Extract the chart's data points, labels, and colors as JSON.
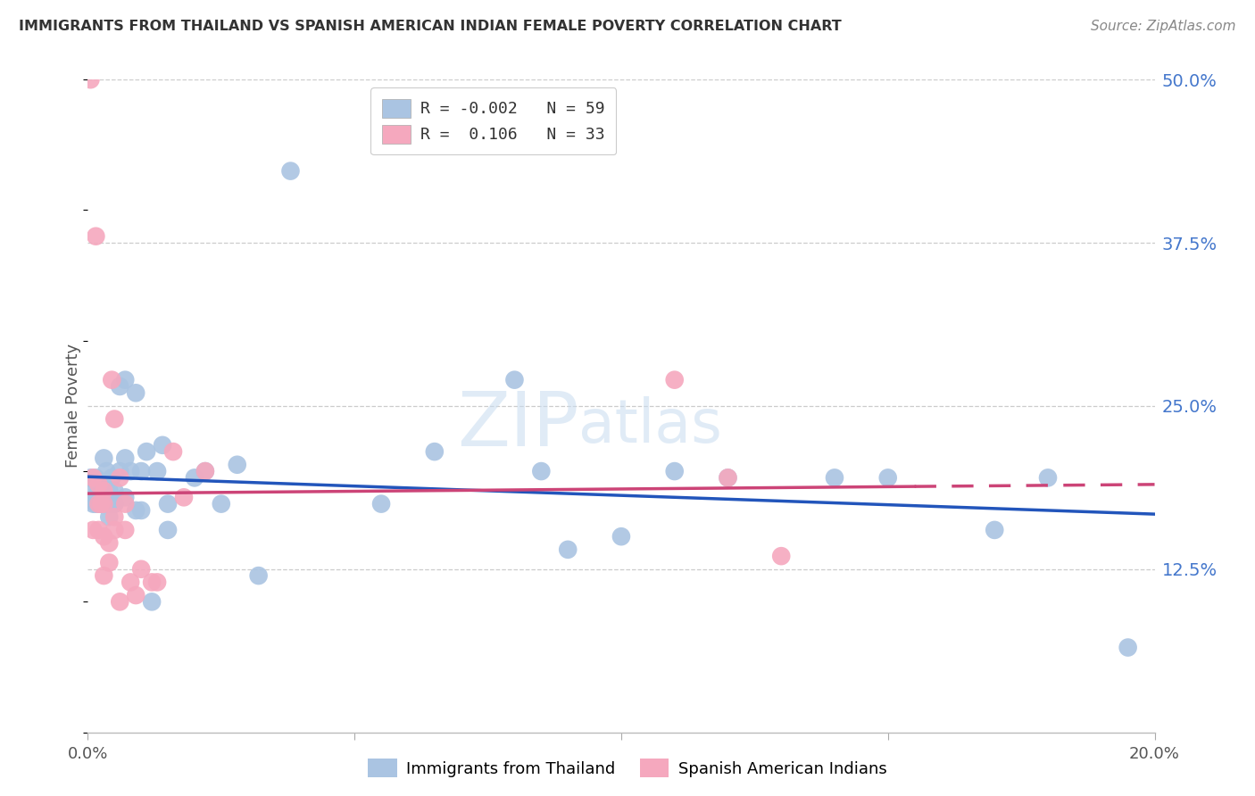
{
  "title": "IMMIGRANTS FROM THAILAND VS SPANISH AMERICAN INDIAN FEMALE POVERTY CORRELATION CHART",
  "source": "Source: ZipAtlas.com",
  "ylabel": "Female Poverty",
  "legend_label1": "Immigrants from Thailand",
  "legend_label2": "Spanish American Indians",
  "blue_scatter_color": "#aac4e2",
  "pink_scatter_color": "#f5a8be",
  "blue_line_color": "#2255bb",
  "pink_line_color": "#cc4477",
  "watermark": "ZIPatlas",
  "blue_R": -0.002,
  "blue_N": 59,
  "pink_R": 0.106,
  "pink_N": 33,
  "x_min": 0.0,
  "x_max": 0.2,
  "y_min": 0.0,
  "y_max": 0.5,
  "y_ticks_right": [
    0.125,
    0.25,
    0.375,
    0.5
  ],
  "y_tick_labels_right": [
    "12.5%",
    "25.0%",
    "37.5%",
    "50.0%"
  ],
  "blue_x": [
    0.0005,
    0.001,
    0.001,
    0.0015,
    0.0015,
    0.002,
    0.002,
    0.002,
    0.002,
    0.0025,
    0.0025,
    0.003,
    0.003,
    0.003,
    0.003,
    0.0035,
    0.0035,
    0.004,
    0.004,
    0.004,
    0.0045,
    0.005,
    0.005,
    0.005,
    0.006,
    0.006,
    0.007,
    0.007,
    0.007,
    0.008,
    0.009,
    0.009,
    0.01,
    0.01,
    0.011,
    0.012,
    0.013,
    0.014,
    0.015,
    0.015,
    0.02,
    0.022,
    0.025,
    0.028,
    0.032,
    0.038,
    0.055,
    0.065,
    0.08,
    0.085,
    0.09,
    0.1,
    0.11,
    0.12,
    0.14,
    0.15,
    0.17,
    0.18,
    0.195
  ],
  "blue_y": [
    0.195,
    0.175,
    0.185,
    0.195,
    0.175,
    0.185,
    0.19,
    0.175,
    0.185,
    0.185,
    0.175,
    0.19,
    0.185,
    0.21,
    0.175,
    0.175,
    0.2,
    0.165,
    0.175,
    0.185,
    0.195,
    0.175,
    0.185,
    0.175,
    0.265,
    0.2,
    0.18,
    0.21,
    0.27,
    0.2,
    0.17,
    0.26,
    0.2,
    0.17,
    0.215,
    0.1,
    0.2,
    0.22,
    0.175,
    0.155,
    0.195,
    0.2,
    0.175,
    0.205,
    0.12,
    0.43,
    0.175,
    0.215,
    0.27,
    0.2,
    0.14,
    0.15,
    0.2,
    0.195,
    0.195,
    0.195,
    0.155,
    0.195,
    0.065
  ],
  "pink_x": [
    0.0005,
    0.001,
    0.001,
    0.0015,
    0.002,
    0.002,
    0.002,
    0.0025,
    0.003,
    0.003,
    0.003,
    0.003,
    0.004,
    0.004,
    0.0045,
    0.005,
    0.005,
    0.006,
    0.006,
    0.007,
    0.007,
    0.008,
    0.009,
    0.01,
    0.012,
    0.013,
    0.016,
    0.018,
    0.022,
    0.11,
    0.12,
    0.13,
    0.005
  ],
  "pink_y": [
    0.5,
    0.195,
    0.155,
    0.38,
    0.175,
    0.19,
    0.155,
    0.175,
    0.12,
    0.15,
    0.175,
    0.185,
    0.13,
    0.145,
    0.27,
    0.155,
    0.165,
    0.1,
    0.195,
    0.155,
    0.175,
    0.115,
    0.105,
    0.125,
    0.115,
    0.115,
    0.215,
    0.18,
    0.2,
    0.27,
    0.195,
    0.135,
    0.24
  ]
}
